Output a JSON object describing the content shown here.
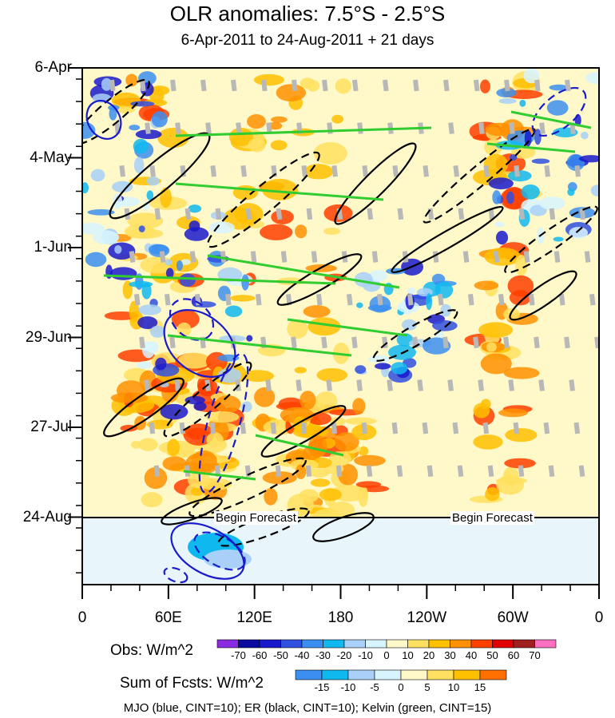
{
  "chart_data": {
    "type": "heatmap",
    "title": "OLR anomalies: 7.5°S - 2.5°S",
    "subtitle": "6-Apr-2011 to 24-Aug-2011 + 21 days",
    "y_ticks": [
      "6-Apr",
      "4-May",
      "1-Jun",
      "29-Jun",
      "27-Jul",
      "24-Aug"
    ],
    "x_ticks": [
      "0",
      "60E",
      "120E",
      "180",
      "120W",
      "60W",
      "0"
    ],
    "forecast_label": "Begin Forecast",
    "obs_legend": {
      "title": "Obs: W/m^2",
      "levels": [
        -70,
        -60,
        -50,
        -40,
        -30,
        -20,
        -10,
        0,
        10,
        20,
        30,
        40,
        50,
        60,
        70
      ],
      "colors": [
        "#8a2be2",
        "#0a0aa0",
        "#1a1acd",
        "#3050e0",
        "#3c8ff0",
        "#10b8f0",
        "#a8d0f8",
        "#d8f4ff",
        "#fff8c8",
        "#ffe060",
        "#ffc000",
        "#ff9000",
        "#ff4000",
        "#e00000",
        "#a02020",
        "#ff70c0"
      ]
    },
    "fcst_legend": {
      "title": "Sum of Fcsts: W/m^2",
      "levels": [
        -15,
        -10,
        -5,
        0,
        5,
        10,
        15
      ],
      "colors": [
        "#3c8ff0",
        "#10b8f0",
        "#a8d0f8",
        "#d8f4ff",
        "#fff8c8",
        "#ffe060",
        "#ffc000",
        "#ff7000"
      ]
    },
    "footnote": "MJO (blue, CINT=10); ER (black, CINT=10); Kelvin (green, CINT=15)"
  }
}
